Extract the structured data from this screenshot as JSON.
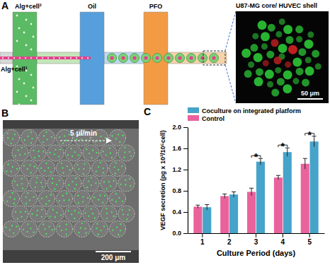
{
  "figure": {
    "panel_a": {
      "label": "A",
      "inlets": [
        "Alg+cell²",
        "Oil",
        "PFO"
      ],
      "inlet_left": "Alg+cell¹",
      "image_title": "U87-MG core/ HUVEC shell",
      "scale_bar": "50 μm"
    },
    "panel_b": {
      "label": "B",
      "flow_rate": "5 μl/min",
      "scale_bar": "200 μm"
    },
    "panel_c": {
      "label": "C"
    }
  },
  "chart_data": {
    "type": "bar",
    "x_label": "Culture Period (days)",
    "y_label": "VEGF secretion (pg x 10³/10⁵cell)",
    "categories": [
      "1",
      "2",
      "3",
      "4",
      "5"
    ],
    "series": [
      {
        "name": "Control",
        "color": "#e9629b",
        "values": [
          0.5,
          0.7,
          0.78,
          1.05,
          1.31
        ],
        "errors": [
          0.03,
          0.04,
          0.07,
          0.04,
          0.1
        ]
      },
      {
        "name": "Coculture on integrated platform",
        "color": "#46a3c9",
        "values": [
          0.49,
          0.73,
          1.35,
          1.53,
          1.73
        ],
        "errors": [
          0.05,
          0.05,
          0.06,
          0.08,
          0.1
        ]
      }
    ],
    "ylim": [
      0,
      2
    ],
    "yticks": [
      {
        "value": 0,
        "label": "0.0"
      },
      0.4,
      0.8,
      1.2,
      1.6,
      {
        "value": 2,
        "label": "2.0"
      }
    ],
    "legend": "upper left",
    "significance": {
      "label": "*",
      "categories": [
        "3",
        "4",
        "5"
      ]
    }
  }
}
